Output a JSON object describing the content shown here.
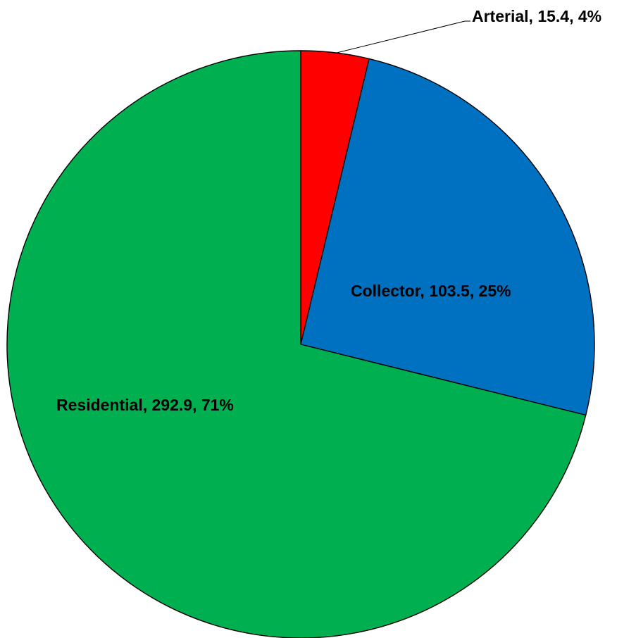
{
  "chart_data": {
    "type": "pie",
    "start_angle_deg": 0,
    "direction": "clockwise",
    "slices": [
      {
        "name": "Arterial",
        "value": 15.4,
        "percent": "4%",
        "color": "#FF0000",
        "label": "Arterial, 15.4, 4%"
      },
      {
        "name": "Collector",
        "value": 103.5,
        "percent": "25%",
        "color": "#0070C0",
        "label": "Collector, 103.5, 25%"
      },
      {
        "name": "Residential",
        "value": 292.9,
        "percent": "71%",
        "color": "#00B050",
        "label": "Residential, 292.9, 71%"
      }
    ]
  }
}
